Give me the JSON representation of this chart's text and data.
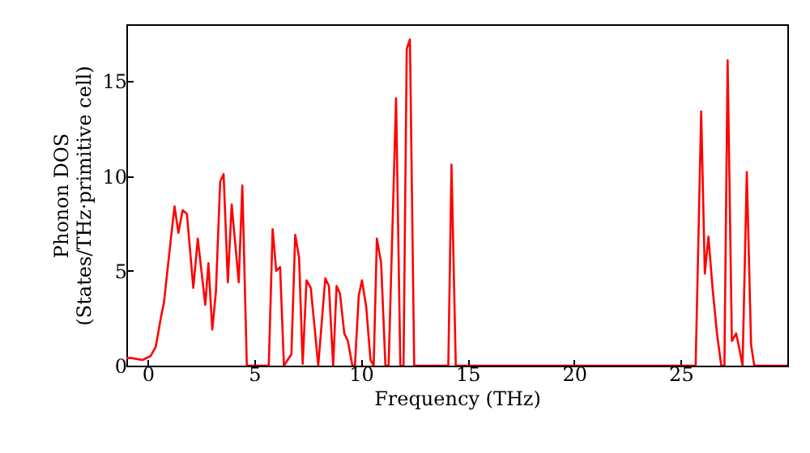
{
  "chart_data": {
    "type": "line",
    "xlabel": "Frequency (THz)",
    "ylabel": "Phonon DOS\n(States/THz·primitive cell)",
    "x": [
      -1,
      -0.76,
      -0.25,
      0.13,
      0.38,
      0.63,
      0.76,
      1.08,
      1.26,
      1.44,
      1.64,
      1.84,
      2.14,
      2.35,
      2.7,
      2.85,
      3.03,
      3.2,
      3.4,
      3.56,
      3.76,
      3.94,
      4.27,
      4.44,
      4.65,
      5.68,
      5.86,
      6.03,
      6.21,
      6.39,
      6.74,
      6.92,
      7.1,
      7.27,
      7.45,
      7.65,
      8.0,
      8.33,
      8.5,
      8.7,
      8.86,
      9.02,
      9.22,
      9.39,
      9.6,
      9.72,
      9.9,
      10.05,
      10.25,
      10.45,
      10.6,
      10.75,
      10.95,
      11.15,
      11.3,
      11.65,
      11.85,
      12.0,
      12.15,
      12.3,
      12.5,
      14.1,
      14.25,
      14.45,
      25.7,
      25.96,
      26.13,
      26.3,
      26.5,
      26.7,
      26.9,
      27.05,
      27.2,
      27.4,
      27.6,
      27.75,
      27.9,
      28.1,
      28.3,
      28.45,
      30
    ],
    "series": [
      {
        "color": "#ff0000",
        "values": [
          0.4,
          0.4,
          0.3,
          0.5,
          1.0,
          2.6,
          3.3,
          6.6,
          8.4,
          7.0,
          8.2,
          8.0,
          4.1,
          6.7,
          3.2,
          5.4,
          1.9,
          3.9,
          9.7,
          10.1,
          4.4,
          8.5,
          4.4,
          9.5,
          0,
          0,
          7.2,
          5.0,
          5.2,
          0,
          0.6,
          6.9,
          5.7,
          0.1,
          4.5,
          4.1,
          0,
          4.6,
          4.2,
          0,
          4.2,
          3.8,
          1.7,
          1.3,
          0,
          0,
          3.7,
          4.5,
          3.1,
          0.3,
          0,
          6.7,
          5.4,
          0,
          0,
          14.1,
          0,
          0,
          16.7,
          17.2,
          0,
          0,
          10.6,
          0,
          0,
          13.4,
          4.85,
          6.8,
          4.0,
          1.7,
          0,
          0,
          16.1,
          1.3,
          1.7,
          0.9,
          0,
          10.2,
          1.1,
          0,
          0
        ]
      }
    ],
    "xlim": [
      -1,
      30
    ],
    "xticks": [
      0,
      5,
      10,
      15,
      20,
      25
    ],
    "ylim": [
      0,
      18
    ],
    "yticks": [
      0,
      5,
      10,
      15
    ],
    "grid": false,
    "marker": "none",
    "line_style": "solid"
  }
}
